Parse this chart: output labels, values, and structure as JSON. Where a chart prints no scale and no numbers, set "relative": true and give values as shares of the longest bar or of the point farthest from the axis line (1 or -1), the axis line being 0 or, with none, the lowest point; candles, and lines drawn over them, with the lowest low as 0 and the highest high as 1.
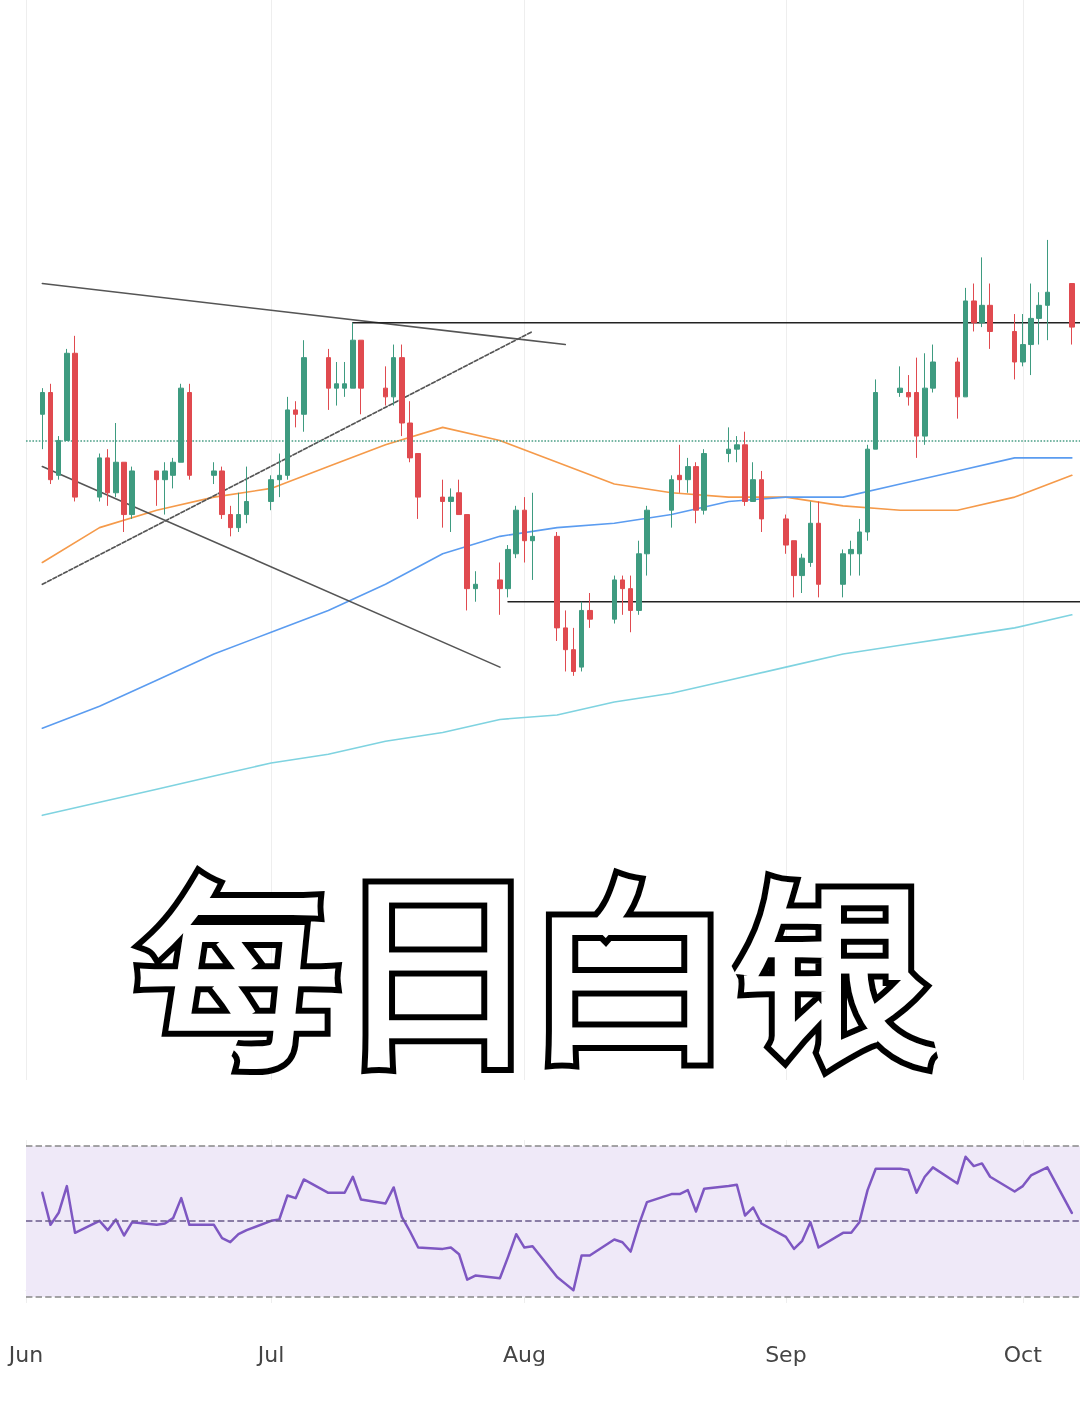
{
  "chart_data": [
    {
      "type": "candlestick",
      "title": "每日白银",
      "relative": true,
      "tick_labels": false,
      "grid": "x",
      "xlim": [
        "--06-01",
        "--10-08"
      ],
      "xticks": [
        {
          "value": "--06-01",
          "label": "Jun"
        },
        {
          "value": "--07-01",
          "label": "Jul"
        },
        {
          "value": "--08-01",
          "label": "Aug"
        },
        {
          "value": "--09-02",
          "label": "Sep"
        },
        {
          "value": "--10-01",
          "label": "Oct"
        }
      ],
      "x": [
        "--06-03",
        "--06-04",
        "--06-05",
        "--06-06",
        "--06-07",
        "--06-10",
        "--06-11",
        "--06-12",
        "--06-13",
        "--06-14",
        "--06-17",
        "--06-18",
        "--06-19",
        "--06-20",
        "--06-21",
        "--06-24",
        "--06-25",
        "--06-26",
        "--06-27",
        "--06-28",
        "--07-01",
        "--07-02",
        "--07-03",
        "--07-04",
        "--07-05",
        "--07-08",
        "--07-09",
        "--07-10",
        "--07-11",
        "--07-12",
        "--07-15",
        "--07-16",
        "--07-17",
        "--07-18",
        "--07-19",
        "--07-22",
        "--07-23",
        "--07-24",
        "--07-25",
        "--07-26",
        "--07-29",
        "--07-30",
        "--07-31",
        "--08-01",
        "--08-02",
        "--08-05",
        "--08-06",
        "--08-07",
        "--08-08",
        "--08-09",
        "--08-12",
        "--08-13",
        "--08-14",
        "--08-15",
        "--08-16",
        "--08-19",
        "--08-20",
        "--08-21",
        "--08-22",
        "--08-23",
        "--08-26",
        "--08-27",
        "--08-28",
        "--08-29",
        "--08-30",
        "--09-02",
        "--09-03",
        "--09-04",
        "--09-05",
        "--09-06",
        "--09-09",
        "--09-10",
        "--09-11",
        "--09-12",
        "--09-13",
        "--09-16",
        "--09-17",
        "--09-18",
        "--09-19",
        "--09-20",
        "--09-23",
        "--09-24",
        "--09-25",
        "--09-26",
        "--09-27",
        "--09-30",
        "--10-01",
        "--10-02",
        "--10-03",
        "--10-04",
        "--10-07"
      ],
      "ohlc": [
        [
          0.6,
          0.66,
          0.52,
          0.65
        ],
        [
          0.65,
          0.67,
          0.44,
          0.45
        ],
        [
          0.46,
          0.55,
          0.45,
          0.54
        ],
        [
          0.54,
          0.75,
          0.54,
          0.74
        ],
        [
          0.74,
          0.78,
          0.4,
          0.41
        ],
        [
          0.41,
          0.51,
          0.4,
          0.5
        ],
        [
          0.5,
          0.52,
          0.39,
          0.42
        ],
        [
          0.42,
          0.58,
          0.41,
          0.49
        ],
        [
          0.49,
          0.49,
          0.33,
          0.37
        ],
        [
          0.37,
          0.48,
          0.36,
          0.47
        ],
        [
          0.47,
          0.47,
          0.39,
          0.45
        ],
        [
          0.45,
          0.49,
          0.37,
          0.47
        ],
        [
          0.46,
          0.5,
          0.43,
          0.49
        ],
        [
          0.49,
          0.67,
          0.49,
          0.66
        ],
        [
          0.65,
          0.67,
          0.45,
          0.46
        ],
        [
          0.46,
          0.49,
          0.44,
          0.47
        ],
        [
          0.47,
          0.48,
          0.36,
          0.37
        ],
        [
          0.37,
          0.39,
          0.32,
          0.34
        ],
        [
          0.34,
          0.42,
          0.33,
          0.37
        ],
        [
          0.37,
          0.48,
          0.35,
          0.4
        ],
        [
          0.4,
          0.46,
          0.38,
          0.45
        ],
        [
          0.45,
          0.51,
          0.41,
          0.46
        ],
        [
          0.46,
          0.64,
          0.45,
          0.61
        ],
        [
          0.61,
          0.63,
          0.57,
          0.6
        ],
        [
          0.6,
          0.77,
          0.56,
          0.73
        ],
        [
          0.73,
          0.75,
          0.61,
          0.66
        ],
        [
          0.66,
          0.72,
          0.62,
          0.67
        ],
        [
          0.66,
          0.72,
          0.64,
          0.67
        ],
        [
          0.66,
          0.81,
          0.66,
          0.77
        ],
        [
          0.77,
          0.77,
          0.6,
          0.66
        ],
        [
          0.66,
          0.71,
          0.62,
          0.64
        ],
        [
          0.64,
          0.76,
          0.62,
          0.73
        ],
        [
          0.73,
          0.76,
          0.55,
          0.58
        ],
        [
          0.58,
          0.63,
          0.49,
          0.5
        ],
        [
          0.51,
          0.51,
          0.36,
          0.41
        ],
        [
          0.41,
          0.45,
          0.34,
          0.4
        ],
        [
          0.4,
          0.43,
          0.33,
          0.41
        ],
        [
          0.42,
          0.45,
          0.37,
          0.37
        ],
        [
          0.37,
          0.37,
          0.15,
          0.2
        ],
        [
          0.2,
          0.24,
          0.17,
          0.21
        ],
        [
          0.22,
          0.26,
          0.14,
          0.2
        ],
        [
          0.2,
          0.3,
          0.18,
          0.29
        ],
        [
          0.28,
          0.39,
          0.27,
          0.38
        ],
        [
          0.38,
          0.41,
          0.26,
          0.31
        ],
        [
          0.31,
          0.42,
          0.22,
          0.32
        ],
        [
          0.32,
          0.33,
          0.08,
          0.11
        ],
        [
          0.11,
          0.15,
          0.01,
          0.06
        ],
        [
          0.06,
          0.11,
          0,
          0.01
        ],
        [
          0.02,
          0.17,
          0.01,
          0.15
        ],
        [
          0.15,
          0.19,
          0.11,
          0.13
        ],
        [
          0.13,
          0.23,
          0.12,
          0.22
        ],
        [
          0.22,
          0.23,
          0.14,
          0.2
        ],
        [
          0.2,
          0.23,
          0.1,
          0.15
        ],
        [
          0.15,
          0.31,
          0.14,
          0.28
        ],
        [
          0.28,
          0.39,
          0.23,
          0.38
        ],
        [
          0.38,
          0.46,
          0.34,
          0.45
        ],
        [
          0.46,
          0.53,
          0.42,
          0.45
        ],
        [
          0.45,
          0.5,
          0.42,
          0.48
        ],
        [
          0.48,
          0.49,
          0.35,
          0.38
        ],
        [
          0.38,
          0.52,
          0.37,
          0.51
        ],
        [
          0.51,
          0.57,
          0.49,
          0.52
        ],
        [
          0.52,
          0.55,
          0.49,
          0.53
        ],
        [
          0.53,
          0.56,
          0.39,
          0.4
        ],
        [
          0.4,
          0.49,
          0.4,
          0.45
        ],
        [
          0.45,
          0.47,
          0.33,
          0.36
        ],
        [
          0.36,
          0.37,
          0.28,
          0.3
        ],
        [
          0.31,
          0.31,
          0.18,
          0.23
        ],
        [
          0.23,
          0.28,
          0.19,
          0.27
        ],
        [
          0.26,
          0.4,
          0.25,
          0.35
        ],
        [
          0.35,
          0.4,
          0.18,
          0.21
        ],
        [
          0.21,
          0.29,
          0.18,
          0.28
        ],
        [
          0.28,
          0.31,
          0.23,
          0.29
        ],
        [
          0.28,
          0.36,
          0.23,
          0.33
        ],
        [
          0.33,
          0.53,
          0.31,
          0.52
        ],
        [
          0.52,
          0.68,
          0.52,
          0.65
        ],
        [
          0.65,
          0.71,
          0.64,
          0.66
        ],
        [
          0.65,
          0.69,
          0.62,
          0.64
        ],
        [
          0.65,
          0.73,
          0.5,
          0.55
        ],
        [
          0.55,
          0.74,
          0.53,
          0.66
        ],
        [
          0.66,
          0.76,
          0.65,
          0.72
        ],
        [
          0.72,
          0.73,
          0.59,
          0.64
        ],
        [
          0.64,
          0.89,
          0.64,
          0.86
        ],
        [
          0.86,
          0.9,
          0.79,
          0.81
        ],
        [
          0.81,
          0.96,
          0.8,
          0.85
        ],
        [
          0.85,
          0.9,
          0.75,
          0.79
        ],
        [
          0.79,
          0.83,
          0.68,
          0.72
        ],
        [
          0.72,
          0.83,
          0.71,
          0.76
        ],
        [
          0.76,
          0.9,
          0.69,
          0.82
        ],
        [
          0.82,
          0.88,
          0.76,
          0.85
        ],
        [
          0.85,
          1,
          0.77,
          0.88
        ],
        [
          0.9,
          0.9,
          0.76,
          0.8
        ]
      ],
      "colors": [
        "#3e9b80",
        "#e04a4f",
        "#3e9b80",
        "#3e9b80",
        "#e04a4f",
        "#3e9b80",
        "#e04a4f",
        "#3e9b80",
        "#e04a4f",
        "#3e9b80",
        "#e04a4f",
        "#3e9b80",
        "#3e9b80",
        "#3e9b80",
        "#e04a4f",
        "#3e9b80",
        "#e04a4f",
        "#e04a4f",
        "#3e9b80",
        "#3e9b80",
        "#3e9b80",
        "#3e9b80",
        "#3e9b80",
        "#e04a4f",
        "#3e9b80",
        "#e04a4f",
        "#3e9b80",
        "#3e9b80",
        "#3e9b80",
        "#e04a4f",
        "#e04a4f",
        "#3e9b80",
        "#e04a4f",
        "#e04a4f",
        "#e04a4f",
        "#e04a4f",
        "#3e9b80",
        "#e04a4f",
        "#e04a4f",
        "#3e9b80",
        "#e04a4f",
        "#3e9b80",
        "#3e9b80",
        "#e04a4f",
        "#3e9b80",
        "#e04a4f",
        "#e04a4f",
        "#e04a4f",
        "#3e9b80",
        "#e04a4f",
        "#3e9b80",
        "#e04a4f",
        "#e04a4f",
        "#3e9b80",
        "#3e9b80",
        "#3e9b80",
        "#e04a4f",
        "#3e9b80",
        "#e04a4f",
        "#3e9b80",
        "#3e9b80",
        "#3e9b80",
        "#e04a4f",
        "#3e9b80",
        "#e04a4f",
        "#e04a4f",
        "#e04a4f",
        "#3e9b80",
        "#3e9b80",
        "#e04a4f",
        "#3e9b80",
        "#3e9b80",
        "#3e9b80",
        "#3e9b80",
        "#3e9b80",
        "#3e9b80",
        "#e04a4f",
        "#e04a4f",
        "#3e9b80",
        "#3e9b80",
        "#e04a4f",
        "#3e9b80",
        "#e04a4f",
        "#3e9b80",
        "#e04a4f",
        "#e04a4f",
        "#3e9b80",
        "#3e9b80",
        "#3e9b80",
        "#3e9b80",
        "#e04a4f"
      ],
      "ref_lines": [
        {
          "axis": "y",
          "value": 0.54,
          "color": "#4a9e86",
          "line_style": "dotted"
        }
      ],
      "series": [
        {
          "type": "line",
          "color": "#f59a4a",
          "line_style": "solid",
          "x": [
            "--06-03",
            "--06-10",
            "--06-17",
            "--06-24",
            "--07-01",
            "--07-08",
            "--07-15",
            "--07-22",
            "--07-29",
            "--08-05",
            "--08-12",
            "--08-19",
            "--08-26",
            "--09-02",
            "--09-09",
            "--09-16",
            "--09-23",
            "--09-30",
            "--10-07"
          ],
          "values": [
            0.26,
            0.34,
            0.38,
            0.41,
            0.43,
            0.48,
            0.53,
            0.57,
            0.54,
            0.49,
            0.44,
            0.42,
            0.41,
            0.41,
            0.39,
            0.38,
            0.38,
            0.41,
            0.46
          ]
        },
        {
          "type": "line",
          "color": "#5b9cf0",
          "line_style": "solid",
          "x": [
            "--06-03",
            "--06-10",
            "--06-17",
            "--06-24",
            "--07-01",
            "--07-08",
            "--07-15",
            "--07-22",
            "--07-29",
            "--08-05",
            "--08-12",
            "--08-19",
            "--08-26",
            "--09-02",
            "--09-09",
            "--09-16",
            "--09-23",
            "--09-30",
            "--10-07"
          ],
          "values": [
            -0.12,
            -0.07,
            -0.01,
            0.05,
            0.1,
            0.15,
            0.21,
            0.28,
            0.32,
            0.34,
            0.35,
            0.37,
            0.4,
            0.41,
            0.41,
            0.44,
            0.47,
            0.5,
            0.5
          ]
        },
        {
          "type": "line",
          "color": "#7fd3e0",
          "line_style": "solid",
          "x": [
            "--06-03",
            "--06-10",
            "--06-17",
            "--06-24",
            "--07-01",
            "--07-08",
            "--07-15",
            "--07-22",
            "--07-29",
            "--08-05",
            "--08-12",
            "--08-19",
            "--08-26",
            "--09-02",
            "--09-09",
            "--09-16",
            "--09-23",
            "--09-30",
            "--10-07"
          ],
          "values": [
            -0.32,
            -0.29,
            -0.26,
            -0.23,
            -0.2,
            -0.18,
            -0.15,
            -0.13,
            -0.1,
            -0.09,
            -0.06,
            -0.04,
            -0.01,
            0.02,
            0.05,
            0.07,
            0.09,
            0.11,
            0.14
          ]
        },
        {
          "type": "line",
          "color": "#555555",
          "line_style": "solid",
          "x": [
            "--06-03",
            "--08-06"
          ],
          "values": [
            0.9,
            0.76
          ]
        },
        {
          "type": "line",
          "color": "#555555",
          "line_style": "solid",
          "x": [
            "--06-03",
            "--07-29"
          ],
          "values": [
            0.48,
            0.02
          ]
        },
        {
          "type": "line",
          "color": "#555555",
          "line_style": "dashed",
          "x": [
            "--06-03",
            "--08-02"
          ],
          "values": [
            0.21,
            0.79
          ]
        },
        {
          "type": "line",
          "color": "#222222",
          "line_style": "solid",
          "x": [
            "--07-11",
            "--10-08"
          ],
          "values": [
            0.81,
            0.81
          ]
        },
        {
          "type": "line",
          "color": "#222222",
          "line_style": "solid",
          "x": [
            "--07-30",
            "--10-08"
          ],
          "values": [
            0.17,
            0.17
          ]
        }
      ]
    },
    {
      "type": "line",
      "relative": true,
      "grid": "x",
      "color": "#7e57c2",
      "xlim": [
        "--06-01",
        "--10-08"
      ],
      "xticks": [
        {
          "value": "--06-01",
          "label": "Jun"
        },
        {
          "value": "--07-01",
          "label": "Jul"
        },
        {
          "value": "--08-01",
          "label": "Aug"
        },
        {
          "value": "--09-02",
          "label": "Sep"
        },
        {
          "value": "--10-01",
          "label": "Oct"
        }
      ],
      "x": [
        "--06-03",
        "--06-04",
        "--06-05",
        "--06-06",
        "--06-07",
        "--06-10",
        "--06-11",
        "--06-12",
        "--06-13",
        "--06-14",
        "--06-17",
        "--06-18",
        "--06-19",
        "--06-20",
        "--06-21",
        "--06-24",
        "--06-25",
        "--06-26",
        "--06-27",
        "--06-28",
        "--07-01",
        "--07-02",
        "--07-03",
        "--07-04",
        "--07-05",
        "--07-08",
        "--07-09",
        "--07-10",
        "--07-11",
        "--07-12",
        "--07-15",
        "--07-16",
        "--07-17",
        "--07-18",
        "--07-19",
        "--07-22",
        "--07-23",
        "--07-24",
        "--07-25",
        "--07-26",
        "--07-29",
        "--07-30",
        "--07-31",
        "--08-01",
        "--08-02",
        "--08-05",
        "--08-06",
        "--08-07",
        "--08-08",
        "--08-09",
        "--08-12",
        "--08-13",
        "--08-14",
        "--08-15",
        "--08-16",
        "--08-19",
        "--08-20",
        "--08-21",
        "--08-22",
        "--08-23",
        "--08-26",
        "--08-27",
        "--08-28",
        "--08-29",
        "--08-30",
        "--09-02",
        "--09-03",
        "--09-04",
        "--09-05",
        "--09-06",
        "--09-09",
        "--09-10",
        "--09-11",
        "--09-12",
        "--09-13",
        "--09-16",
        "--09-17",
        "--09-18",
        "--09-19",
        "--09-20",
        "--09-23",
        "--09-24",
        "--09-25",
        "--09-26",
        "--09-27",
        "--09-30",
        "--10-01",
        "--10-02",
        "--10-03",
        "--10-04",
        "--10-07"
      ],
      "values": [
        0.73,
        0.49,
        0.58,
        0.78,
        0.43,
        0.52,
        0.45,
        0.53,
        0.41,
        0.51,
        0.49,
        0.5,
        0.54,
        0.69,
        0.49,
        0.49,
        0.39,
        0.36,
        0.42,
        0.45,
        0.52,
        0.53,
        0.71,
        0.69,
        0.83,
        0.73,
        0.73,
        0.73,
        0.85,
        0.68,
        0.65,
        0.77,
        0.55,
        0.44,
        0.32,
        0.31,
        0.32,
        0.27,
        0.08,
        0.11,
        0.09,
        0.25,
        0.42,
        0.32,
        0.33,
        0.1,
        0.05,
        0,
        0.26,
        0.26,
        0.38,
        0.36,
        0.29,
        0.49,
        0.66,
        0.72,
        0.72,
        0.75,
        0.59,
        0.76,
        0.78,
        0.79,
        0.56,
        0.62,
        0.5,
        0.4,
        0.31,
        0.37,
        0.51,
        0.32,
        0.43,
        0.43,
        0.51,
        0.75,
        0.91,
        0.91,
        0.9,
        0.73,
        0.85,
        0.92,
        0.8,
        1,
        0.93,
        0.95,
        0.85,
        0.74,
        0.78,
        0.86,
        0.89,
        0.92,
        0.58
      ],
      "bands": [
        {
          "axis": "y",
          "from": -0.05,
          "to": 1.08,
          "color": "#efe9f8"
        }
      ],
      "ref_lines": [
        {
          "axis": "y",
          "value": 1.08,
          "color": "#888888",
          "line_style": "dashed"
        },
        {
          "axis": "y",
          "value": -0.05,
          "color": "#888888",
          "line_style": "dashed"
        },
        {
          "axis": "y",
          "value": 0.52,
          "color": "#6a5a8a",
          "line_style": "dashed"
        }
      ]
    }
  ]
}
